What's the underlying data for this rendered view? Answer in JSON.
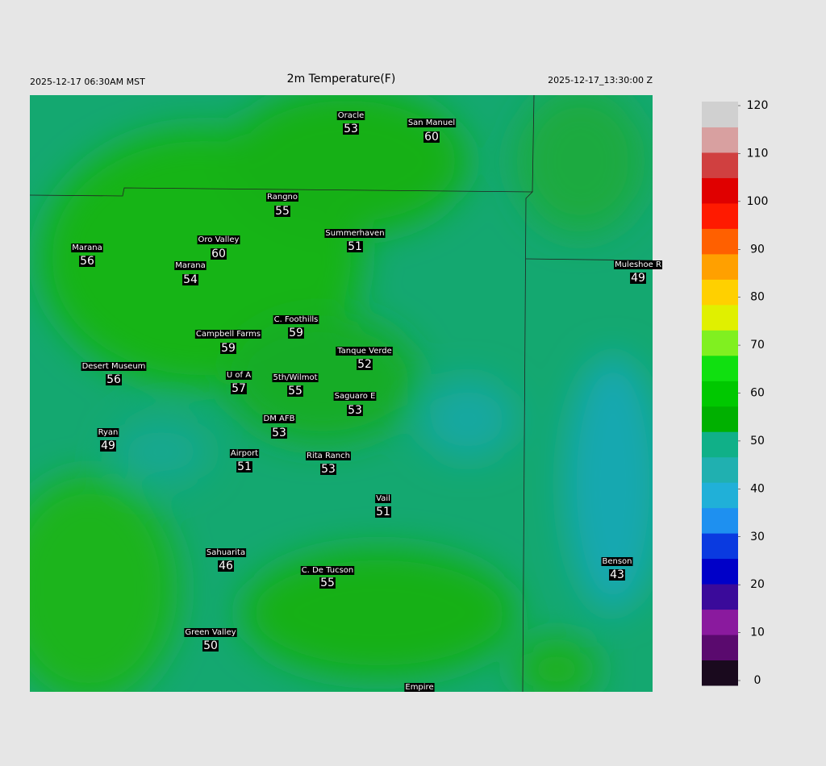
{
  "header": {
    "left": "2025-12-17 06:30AM MST",
    "title": "2m Temperature(F)",
    "right": "2025-12-17_13:30:00 Z"
  },
  "stations": [
    {
      "name": "Oracle",
      "value": 53
    },
    {
      "name": "San Manuel",
      "value": 60
    },
    {
      "name": "Rangno",
      "value": 55
    },
    {
      "name": "Summerhaven",
      "value": 51
    },
    {
      "name": "Marana",
      "value": 56
    },
    {
      "name": "Oro Valley",
      "value": 60
    },
    {
      "name": "Marana",
      "value": 54
    },
    {
      "name": "Muleshoe R",
      "value": 49
    },
    {
      "name": "C. Foothills",
      "value": 59
    },
    {
      "name": "Campbell Farms",
      "value": 59
    },
    {
      "name": "Tanque Verde",
      "value": 52
    },
    {
      "name": "Desert Museum",
      "value": 56
    },
    {
      "name": "U of A",
      "value": 57
    },
    {
      "name": "5th/Wilmot",
      "value": 55
    },
    {
      "name": "Saguaro E",
      "value": 53
    },
    {
      "name": "DM AFB",
      "value": 53
    },
    {
      "name": "Ryan",
      "value": 49
    },
    {
      "name": "Airport",
      "value": 51
    },
    {
      "name": "Rita Ranch",
      "value": 53
    },
    {
      "name": "Vail",
      "value": 51
    },
    {
      "name": "Sahuarita",
      "value": 46
    },
    {
      "name": "C. De Tucson",
      "value": 55
    },
    {
      "name": "Benson",
      "value": 43
    },
    {
      "name": "Green Valley",
      "value": 50
    },
    {
      "name": "Empire",
      "value": null
    }
  ],
  "colorbar": {
    "range": [
      0,
      120
    ],
    "ticks": [
      0,
      10,
      20,
      30,
      40,
      50,
      60,
      70,
      80,
      90,
      100,
      110,
      120
    ],
    "colors": [
      "#1a0a1e",
      "#5a0a6e",
      "#8a1a9e",
      "#3a0a9a",
      "#0000c8",
      "#0a3ae0",
      "#1e90f0",
      "#20b0d8",
      "#20b0b0",
      "#10b088",
      "#00b000",
      "#00c800",
      "#10e010",
      "#80f020",
      "#e0f000",
      "#ffd000",
      "#ffa000",
      "#ff6000",
      "#ff1a00",
      "#e00000",
      "#d04040",
      "#d8a0a0",
      "#d0d0d0"
    ]
  }
}
